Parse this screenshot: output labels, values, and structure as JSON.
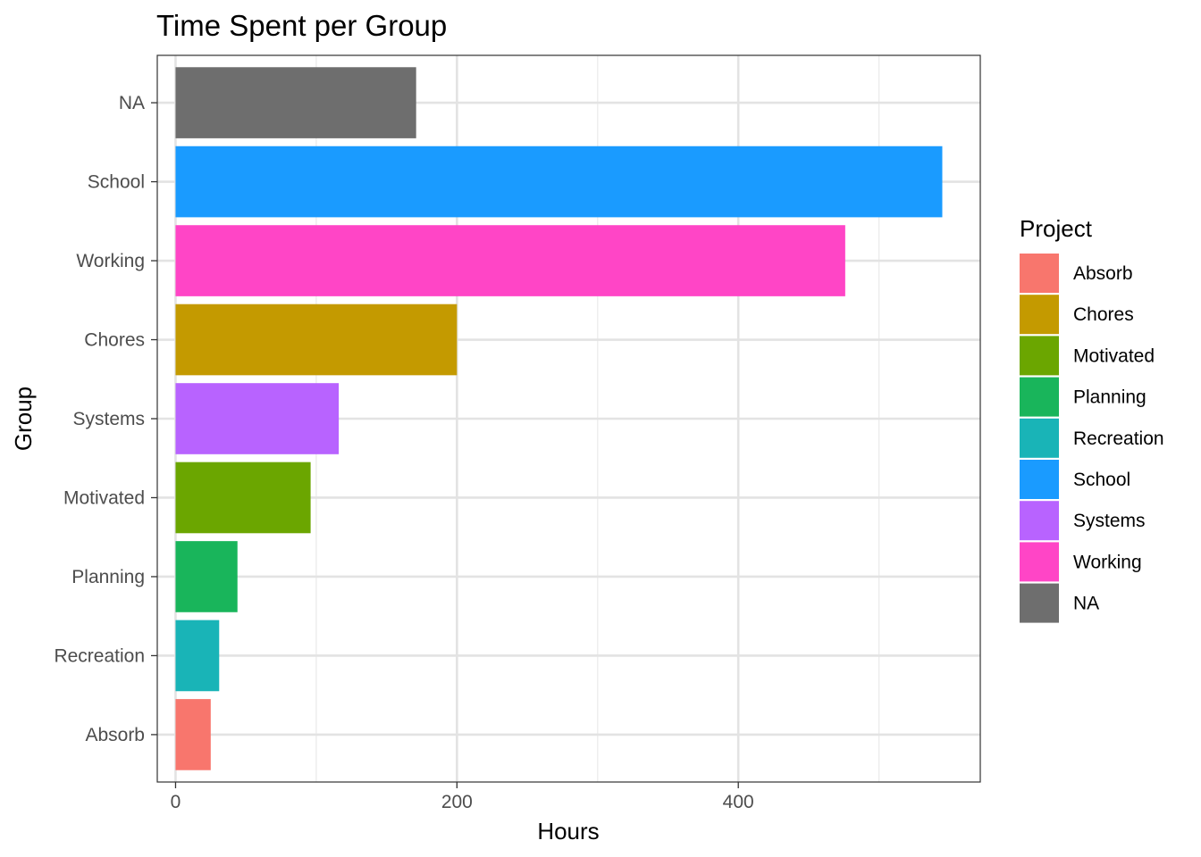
{
  "chart_data": {
    "type": "bar",
    "orientation": "horizontal",
    "title": "Time Spent per Group",
    "xlabel": "Hours",
    "ylabel": "Group",
    "xlim": [
      -13,
      572
    ],
    "x_ticks": [
      0,
      200,
      400
    ],
    "x_minor_ticks": [
      100,
      300,
      500
    ],
    "grid": true,
    "categories": [
      "Absorb",
      "Recreation",
      "Planning",
      "Motivated",
      "Systems",
      "Chores",
      "Working",
      "School",
      "NA"
    ],
    "values": [
      25,
      31,
      44,
      96,
      116,
      200,
      476,
      545,
      171
    ],
    "colors": {
      "Absorb": "#F8766D",
      "Chores": "#C49A00",
      "Motivated": "#6BA600",
      "Planning": "#19B55B",
      "Recreation": "#19B4B7",
      "School": "#1A9BFF",
      "Systems": "#B863FF",
      "Working": "#FF45C6",
      "NA": "#6E6E6E"
    },
    "legend": {
      "title": "Project",
      "position": "right",
      "items": [
        "Absorb",
        "Chores",
        "Motivated",
        "Planning",
        "Recreation",
        "School",
        "Systems",
        "Working",
        "NA"
      ]
    }
  }
}
